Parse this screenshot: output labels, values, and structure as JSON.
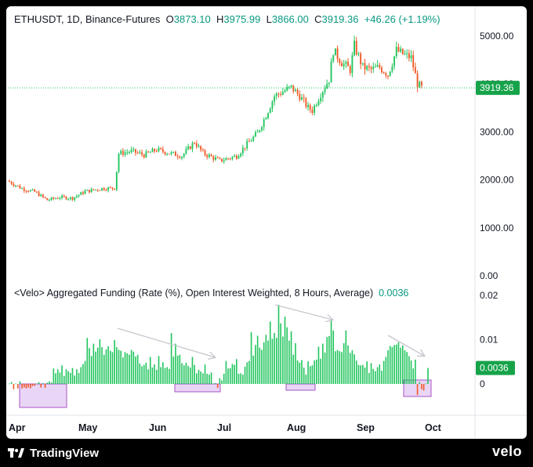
{
  "header": {
    "symbol": "ETHUSDT, 1D, Binance-Futures",
    "o_label": "O",
    "o_value": "3873.10",
    "h_label": "H",
    "h_value": "3975.99",
    "l_label": "L",
    "l_value": "3866.00",
    "c_label": "C",
    "c_value": "3919.36",
    "change": "+46.26 (+1.19%)"
  },
  "indicator": {
    "title": "<Velo> Aggregated Funding (Rate (%), Open Interest Weighted, 8 Hours, Average)",
    "value": "0.0036"
  },
  "footer": {
    "brand": "TradingView",
    "partner": "velo"
  },
  "colors": {
    "up": "#22c55e",
    "down": "#f05a28",
    "bg": "#ffffff",
    "highlight_fill": "#e9d5f5",
    "highlight_stroke": "#a855c7",
    "arrow": "#c8c8d0",
    "price_label_bg": "#16a34a"
  },
  "chart_data": [
    {
      "type": "candlestick",
      "series_name": "ETHUSDT",
      "y_ticks": [
        "5000.00",
        "4000.00",
        "3000.00",
        "2000.00",
        "1000.00",
        "0.00"
      ],
      "ylim": [
        0,
        5000
      ],
      "last_price_label": "3919.36",
      "x_ticks": [
        "Apr",
        "May",
        "Jun",
        "Jul",
        "Aug",
        "Sep",
        "Oct"
      ],
      "close_path": [
        [
          0,
          1960
        ],
        [
          6,
          1820
        ],
        [
          12,
          1750
        ],
        [
          18,
          1580
        ],
        [
          24,
          1640
        ],
        [
          30,
          1620
        ],
        [
          36,
          1760
        ],
        [
          44,
          1820
        ],
        [
          50,
          1830
        ],
        [
          52,
          2550
        ],
        [
          58,
          2600
        ],
        [
          64,
          2520
        ],
        [
          70,
          2630
        ],
        [
          76,
          2560
        ],
        [
          82,
          2500
        ],
        [
          88,
          2790
        ],
        [
          92,
          2560
        ],
        [
          96,
          2480
        ],
        [
          100,
          2400
        ],
        [
          104,
          2450
        ],
        [
          108,
          2500
        ],
        [
          112,
          2700
        ],
        [
          118,
          2980
        ],
        [
          122,
          3350
        ],
        [
          126,
          3750
        ],
        [
          130,
          3840
        ],
        [
          134,
          3930
        ],
        [
          138,
          3750
        ],
        [
          142,
          3500
        ],
        [
          144,
          3450
        ],
        [
          148,
          3800
        ],
        [
          152,
          4100
        ],
        [
          154,
          4700
        ],
        [
          158,
          4450
        ],
        [
          162,
          4300
        ],
        [
          164,
          4800
        ],
        [
          168,
          4350
        ],
        [
          172,
          4300
        ],
        [
          176,
          4350
        ],
        [
          180,
          4200
        ],
        [
          184,
          4700
        ],
        [
          188,
          4600
        ],
        [
          191,
          4550
        ],
        [
          194,
          4000
        ],
        [
          196,
          3919.36
        ]
      ]
    },
    {
      "type": "bar",
      "series_name": "Aggregated Funding",
      "y_ticks": [
        "0.02",
        "0.01",
        "0"
      ],
      "ylim": [
        -0.005,
        0.02
      ],
      "last_value_label": "0.0036",
      "values": [
        0.0001,
        0.0004,
        -0.0012,
        0.0001,
        -0.001,
        0.0006,
        -0.001,
        -0.0008,
        -0.001,
        -0.0008,
        -0.001,
        -0.0005,
        -0.0004,
        0.0001,
        0.0004,
        -0.0008,
        0.0002,
        -0.0009,
        0.0003,
        0.0006,
        0.0003,
        0.0035,
        0.0024,
        0.0033,
        0.0026,
        0.0042,
        0.0018,
        0.0033,
        0.0029,
        0.0025,
        0.0036,
        0.0019,
        0.0033,
        0.0025,
        0.0038,
        0.0045,
        0.0052,
        0.0104,
        0.0081,
        0.0063,
        0.0091,
        0.0073,
        0.0082,
        0.0101,
        0.0083,
        0.0066,
        0.0078,
        0.0085,
        0.0075,
        0.0072,
        0.0099,
        0.0083,
        0.0077,
        0.0075,
        0.006,
        0.0072,
        0.0069,
        0.0066,
        0.0077,
        0.0073,
        0.0062,
        0.0066,
        0.0046,
        0.004,
        0.0043,
        0.0048,
        0.0033,
        0.0061,
        0.0037,
        0.0044,
        0.0032,
        0.0063,
        0.0038,
        0.0049,
        0.0036,
        0.0038,
        0.0034,
        0.0115,
        0.0062,
        0.0091,
        0.0064,
        0.0066,
        0.0047,
        0.0042,
        0.0048,
        0.0041,
        0.0037,
        0.0061,
        0.0043,
        0.0024,
        0.0032,
        0.0028,
        0.0024,
        0.0044,
        0.0023,
        0.0021,
        0.0026,
        0.0001,
        0.0002,
        -0.0009,
        0.0013,
        0.0008,
        0.0023,
        0.0052,
        0.0035,
        0.0036,
        0.0045,
        0.0043,
        0.0056,
        0.0023,
        0.0024,
        0.0021,
        0.0039,
        0.0049,
        0.0052,
        0.0117,
        0.0064,
        0.0088,
        0.0109,
        0.0082,
        0.0077,
        0.0094,
        0.0111,
        0.0098,
        0.0141,
        0.0102,
        0.0115,
        0.0104,
        0.0179,
        0.0137,
        0.0107,
        0.0152,
        0.0128,
        0.0098,
        0.0119,
        0.0066,
        0.0092,
        0.0053,
        0.0048,
        0.0054,
        0.0037,
        0.0021,
        0.0051,
        0.004,
        0.0042,
        0.0053,
        0.0055,
        0.0084,
        0.0057,
        0.0091,
        0.0071,
        0.0106,
        0.0108,
        0.0146,
        0.0121,
        0.0074,
        0.0077,
        0.0074,
        0.0072,
        0.0092,
        0.0121,
        0.0087,
        0.007,
        0.0076,
        0.0067,
        0.0053,
        0.0043,
        0.0042,
        0.0043,
        0.0037,
        0.0051,
        0.0025,
        0.0047,
        0.0034,
        0.0029,
        0.0038,
        0.0044,
        0.003,
        0.0052,
        0.0061,
        0.0076,
        0.0086,
        0.0083,
        0.0088,
        0.0089,
        0.0094,
        0.0082,
        0.0087,
        0.0076,
        0.0072,
        0.0063,
        0.0053,
        0.0035,
        0.0055,
        -0.0025,
        0.0004,
        -0.0012,
        -0.0015,
        0.0001,
        0.0036
      ]
    }
  ]
}
